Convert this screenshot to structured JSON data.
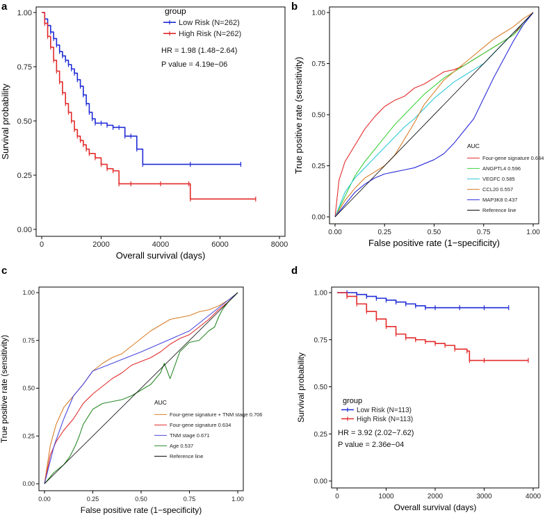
{
  "chart_data": [
    {
      "panel": "a",
      "type": "line",
      "subtype": "kaplan-meier",
      "xlabel": "Overall survival (days)",
      "ylabel": "Survival probability",
      "xlim": [
        0,
        8000
      ],
      "ylim": [
        0,
        1
      ],
      "xticks": [
        "0",
        "2000",
        "4000",
        "6000",
        "8000"
      ],
      "yticks": [
        "0.00",
        "0.25",
        "0.50",
        "0.75",
        "1.00"
      ],
      "legend_title": "group",
      "series": [
        {
          "name": "Low Risk (N=262)",
          "color": "#1f2bd6",
          "x": [
            0,
            100,
            200,
            300,
            400,
            500,
            600,
            700,
            800,
            900,
            1000,
            1100,
            1200,
            1300,
            1400,
            1500,
            1600,
            1700,
            1800,
            2000,
            2200,
            2400,
            2600,
            2800,
            3000,
            3200,
            3400,
            5000,
            6700
          ],
          "y": [
            1.0,
            0.97,
            0.94,
            0.91,
            0.88,
            0.85,
            0.82,
            0.8,
            0.78,
            0.76,
            0.74,
            0.72,
            0.69,
            0.66,
            0.62,
            0.58,
            0.54,
            0.51,
            0.49,
            0.49,
            0.48,
            0.47,
            0.47,
            0.43,
            0.43,
            0.37,
            0.3,
            0.3,
            0.3
          ]
        },
        {
          "name": "High Risk (N=262)",
          "color": "#e32a2a",
          "x": [
            0,
            100,
            200,
            300,
            400,
            500,
            600,
            700,
            800,
            900,
            1000,
            1100,
            1200,
            1300,
            1400,
            1500,
            1600,
            1800,
            2000,
            2200,
            2400,
            2600,
            3000,
            4000,
            4950,
            5000,
            7200
          ],
          "y": [
            1.0,
            0.95,
            0.89,
            0.84,
            0.78,
            0.73,
            0.68,
            0.63,
            0.58,
            0.54,
            0.5,
            0.46,
            0.43,
            0.41,
            0.39,
            0.37,
            0.35,
            0.33,
            0.3,
            0.28,
            0.27,
            0.21,
            0.21,
            0.21,
            0.21,
            0.14,
            0.14
          ]
        }
      ],
      "annotations": [
        "HR = 1.98 (1.48−2.64)",
        "P value = 4.19e−06"
      ]
    },
    {
      "panel": "b",
      "type": "line",
      "subtype": "roc",
      "xlabel": "False positive rate (1−specificity)",
      "ylabel": "True positive rate (sensitivity)",
      "xlim": [
        0,
        1
      ],
      "ylim": [
        0,
        1
      ],
      "xticks": [
        "0.00",
        "0.25",
        "0.50",
        "0.75",
        "1.00"
      ],
      "yticks": [
        "0.00",
        "0.25",
        "0.50",
        "0.75",
        "1.00"
      ],
      "legend_title": "AUC",
      "series": [
        {
          "name": "Four-gene signature 0.634",
          "color": "#e32a2a",
          "x": [
            0,
            0.02,
            0.05,
            0.1,
            0.15,
            0.2,
            0.25,
            0.3,
            0.35,
            0.4,
            0.45,
            0.5,
            0.55,
            0.6,
            0.65,
            0.7,
            0.75,
            0.8,
            0.85,
            0.9,
            0.95,
            1.0
          ],
          "y": [
            0,
            0.18,
            0.27,
            0.35,
            0.43,
            0.49,
            0.54,
            0.57,
            0.59,
            0.63,
            0.65,
            0.68,
            0.71,
            0.72,
            0.74,
            0.77,
            0.8,
            0.83,
            0.86,
            0.89,
            0.95,
            1.0
          ]
        },
        {
          "name": "ANGPTL4 0.596",
          "color": "#3bd13b",
          "x": [
            0,
            0.05,
            0.1,
            0.15,
            0.2,
            0.25,
            0.3,
            0.35,
            0.4,
            0.45,
            0.5,
            0.55,
            0.6,
            0.65,
            0.7,
            0.75,
            0.8,
            0.85,
            0.9,
            0.95,
            1.0
          ],
          "y": [
            0,
            0.1,
            0.2,
            0.27,
            0.33,
            0.39,
            0.45,
            0.5,
            0.55,
            0.6,
            0.64,
            0.68,
            0.71,
            0.74,
            0.77,
            0.8,
            0.83,
            0.86,
            0.89,
            0.94,
            1.0
          ]
        },
        {
          "name": "VEGFC 0.585",
          "color": "#2ec7d8",
          "x": [
            0,
            0.05,
            0.1,
            0.15,
            0.2,
            0.25,
            0.3,
            0.35,
            0.4,
            0.45,
            0.5,
            0.55,
            0.6,
            0.65,
            0.7,
            0.75,
            0.8,
            0.85,
            0.9,
            0.95,
            1.0
          ],
          "y": [
            0,
            0.12,
            0.19,
            0.24,
            0.29,
            0.34,
            0.39,
            0.44,
            0.48,
            0.53,
            0.58,
            0.62,
            0.66,
            0.69,
            0.72,
            0.75,
            0.8,
            0.85,
            0.9,
            0.95,
            1.0
          ]
        },
        {
          "name": "CCL20 0.557",
          "color": "#d97e2a",
          "x": [
            0,
            0.05,
            0.1,
            0.15,
            0.2,
            0.25,
            0.3,
            0.35,
            0.4,
            0.45,
            0.5,
            0.55,
            0.6,
            0.65,
            0.7,
            0.75,
            0.8,
            0.85,
            0.9,
            0.95,
            1.0
          ],
          "y": [
            0,
            0.08,
            0.14,
            0.19,
            0.22,
            0.25,
            0.3,
            0.38,
            0.46,
            0.55,
            0.61,
            0.67,
            0.71,
            0.75,
            0.79,
            0.83,
            0.87,
            0.9,
            0.93,
            0.97,
            1.0
          ]
        },
        {
          "name": "MAP3K8 0.437",
          "color": "#2a2adb",
          "x": [
            0,
            0.05,
            0.1,
            0.15,
            0.2,
            0.25,
            0.3,
            0.35,
            0.4,
            0.45,
            0.5,
            0.55,
            0.6,
            0.65,
            0.7,
            0.75,
            0.8,
            0.85,
            0.9,
            0.95,
            1.0
          ],
          "y": [
            0,
            0.06,
            0.12,
            0.16,
            0.19,
            0.21,
            0.22,
            0.23,
            0.24,
            0.26,
            0.28,
            0.31,
            0.36,
            0.42,
            0.48,
            0.58,
            0.68,
            0.77,
            0.86,
            0.94,
            1.0
          ]
        },
        {
          "name": "Reference line",
          "color": "#000000",
          "x": [
            0,
            1
          ],
          "y": [
            0,
            1
          ]
        }
      ]
    },
    {
      "panel": "c",
      "type": "line",
      "subtype": "roc",
      "xlabel": "False positive rate (1−specificity)",
      "ylabel": "True positive rate (sensitivity)",
      "xlim": [
        0,
        1
      ],
      "ylim": [
        0,
        1
      ],
      "xticks": [
        "0.00",
        "0.25",
        "0.50",
        "0.75",
        "1.00"
      ],
      "yticks": [
        "0.00",
        "0.25",
        "0.50",
        "0.75",
        "1.00"
      ],
      "legend_title": "AUC",
      "series": [
        {
          "name": "Four-gene signature + TNM stage 0.706",
          "color": "#d97e2a",
          "x": [
            0,
            0.03,
            0.06,
            0.1,
            0.15,
            0.2,
            0.25,
            0.3,
            0.35,
            0.4,
            0.45,
            0.5,
            0.55,
            0.6,
            0.65,
            0.7,
            0.75,
            0.8,
            0.85,
            0.9,
            0.95,
            1.0
          ],
          "y": [
            0,
            0.2,
            0.31,
            0.4,
            0.46,
            0.52,
            0.59,
            0.63,
            0.66,
            0.68,
            0.72,
            0.76,
            0.8,
            0.83,
            0.86,
            0.87,
            0.88,
            0.9,
            0.91,
            0.93,
            0.96,
            1.0
          ]
        },
        {
          "name": "Four-gene signature 0.634",
          "color": "#e32a2a",
          "x": [
            0,
            0.03,
            0.06,
            0.1,
            0.15,
            0.2,
            0.25,
            0.3,
            0.35,
            0.4,
            0.45,
            0.5,
            0.55,
            0.6,
            0.65,
            0.7,
            0.75,
            0.8,
            0.85,
            0.9,
            0.95,
            1.0
          ],
          "y": [
            0,
            0.15,
            0.22,
            0.28,
            0.34,
            0.42,
            0.47,
            0.51,
            0.55,
            0.58,
            0.62,
            0.64,
            0.66,
            0.69,
            0.73,
            0.76,
            0.78,
            0.82,
            0.86,
            0.91,
            0.95,
            1.0
          ]
        },
        {
          "name": "TNM stage 0.671",
          "color": "#4a4adf",
          "x": [
            0,
            0.05,
            0.1,
            0.15,
            0.2,
            0.25,
            0.5,
            0.75,
            1.0
          ],
          "y": [
            0,
            0.2,
            0.34,
            0.46,
            0.52,
            0.59,
            0.69,
            0.8,
            1.0
          ]
        },
        {
          "name": "Age 0.537",
          "color": "#2a8a2a",
          "x": [
            0,
            0.05,
            0.1,
            0.13,
            0.16,
            0.18,
            0.2,
            0.25,
            0.3,
            0.35,
            0.4,
            0.45,
            0.5,
            0.55,
            0.6,
            0.62,
            0.65,
            0.7,
            0.75,
            0.8,
            0.85,
            0.88,
            0.9,
            0.92,
            0.95,
            1.0
          ],
          "y": [
            0,
            0.06,
            0.1,
            0.14,
            0.2,
            0.25,
            0.31,
            0.39,
            0.42,
            0.43,
            0.44,
            0.46,
            0.49,
            0.52,
            0.58,
            0.63,
            0.55,
            0.69,
            0.74,
            0.75,
            0.8,
            0.82,
            0.87,
            0.91,
            0.95,
            1.0
          ]
        },
        {
          "name": "Reference line",
          "color": "#000000",
          "x": [
            0,
            1
          ],
          "y": [
            0,
            1
          ]
        }
      ]
    },
    {
      "panel": "d",
      "type": "line",
      "subtype": "kaplan-meier",
      "xlabel": "Overall survival (days)",
      "ylabel": "Survival probability",
      "xlim": [
        0,
        4000
      ],
      "ylim": [
        0,
        1
      ],
      "xticks": [
        "0",
        "1000",
        "2000",
        "3000",
        "4000"
      ],
      "yticks": [
        "0.00",
        "0.25",
        "0.50",
        "0.75",
        "1.00"
      ],
      "legend_title": "group",
      "series": [
        {
          "name": "Low Risk (N=113)",
          "color": "#1f2bd6",
          "x": [
            0,
            200,
            400,
            600,
            800,
            1000,
            1200,
            1400,
            1600,
            1800,
            2000,
            2500,
            3000,
            3500
          ],
          "y": [
            1.0,
            1.0,
            0.99,
            0.98,
            0.97,
            0.96,
            0.95,
            0.94,
            0.93,
            0.92,
            0.92,
            0.92,
            0.92,
            0.92
          ]
        },
        {
          "name": "High Risk (N=113)",
          "color": "#e32a2a",
          "x": [
            0,
            200,
            400,
            600,
            800,
            1000,
            1200,
            1400,
            1600,
            1800,
            2000,
            2200,
            2400,
            2650,
            2700,
            3000,
            3900
          ],
          "y": [
            1.0,
            0.98,
            0.94,
            0.9,
            0.86,
            0.82,
            0.78,
            0.76,
            0.75,
            0.74,
            0.73,
            0.72,
            0.7,
            0.69,
            0.64,
            0.64,
            0.64
          ]
        }
      ],
      "annotations": [
        "HR = 3.92 (2.02−7.62)",
        "P value = 2.36e−04"
      ]
    }
  ]
}
